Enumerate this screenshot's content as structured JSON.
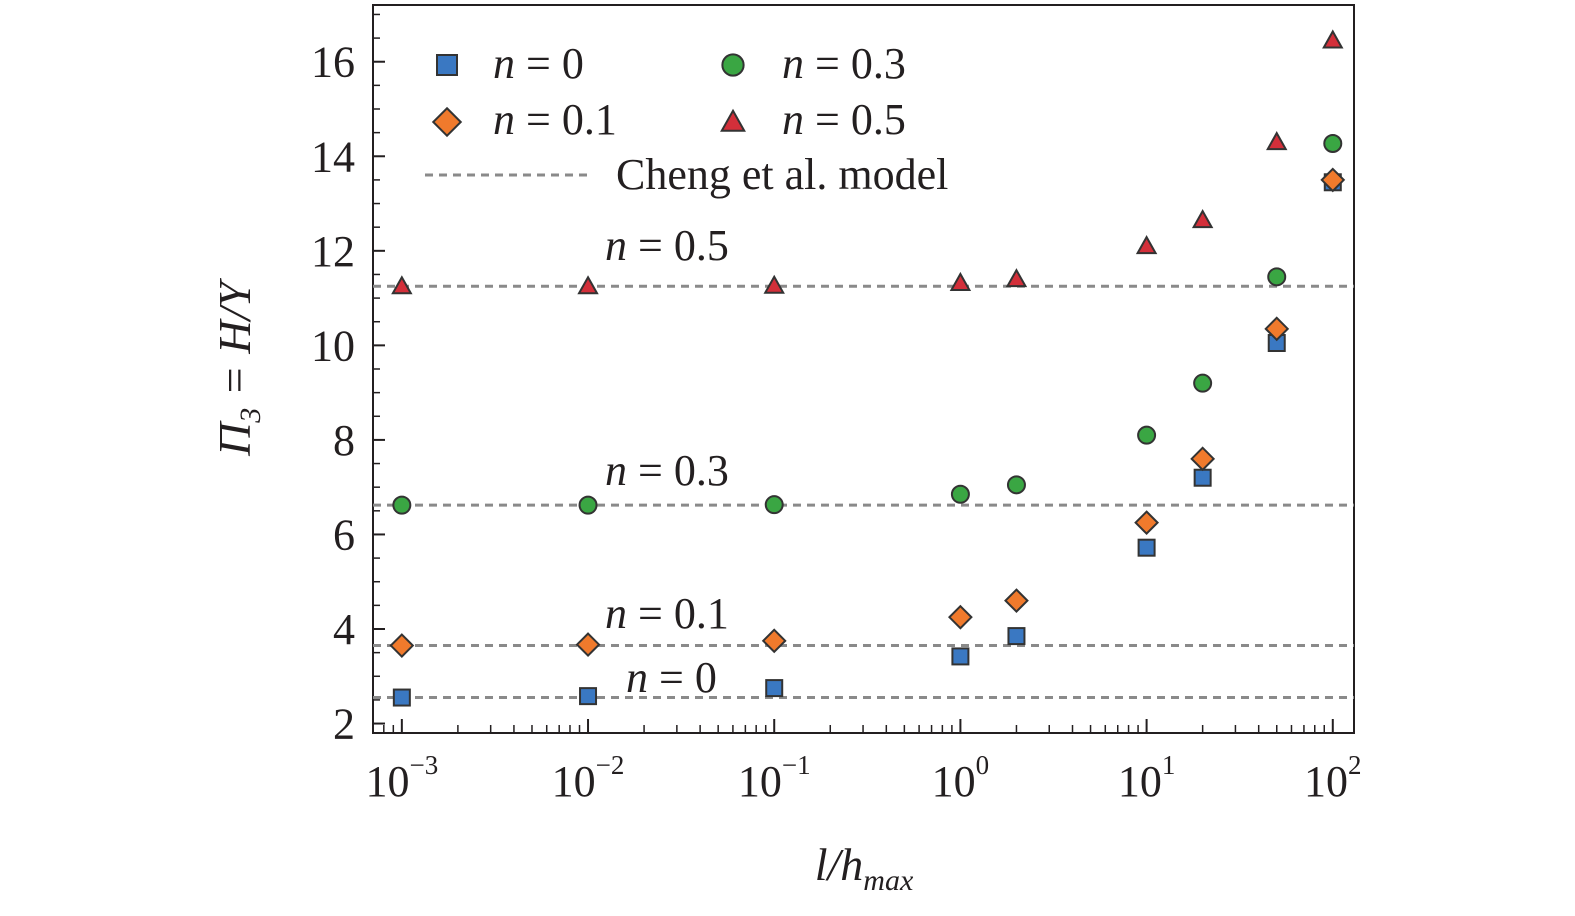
{
  "chart_data": {
    "type": "scatter",
    "xscale": "log",
    "xlim": [
      0.0007,
      130
    ],
    "ylim": [
      1.8,
      17.2
    ],
    "x_ticks": [
      {
        "base": "10",
        "exp": "−3"
      },
      {
        "base": "10",
        "exp": "−2"
      },
      {
        "base": "10",
        "exp": "−1"
      },
      {
        "base": "10",
        "exp": "0"
      },
      {
        "base": "10",
        "exp": "1"
      },
      {
        "base": "10",
        "exp": "2"
      }
    ],
    "y_ticks": [
      "2",
      "4",
      "6",
      "8",
      "10",
      "12",
      "14",
      "16"
    ],
    "xlabel": {
      "main": "l/h",
      "sub": "max"
    },
    "ylabel": {
      "main": "Π",
      "sub": "3",
      "rest": " = H/Y"
    },
    "x": [
      0.001,
      0.01,
      0.1,
      1,
      2,
      10,
      20,
      50,
      100
    ],
    "series": [
      {
        "var": "n",
        "eq": " = 0",
        "marker": "square",
        "color": "#3a78c2",
        "values": [
          2.55,
          2.58,
          2.75,
          3.42,
          3.85,
          5.72,
          7.2,
          10.05,
          13.45
        ]
      },
      {
        "var": "n",
        "eq": " = 0.1",
        "marker": "diamond",
        "color": "#f07a2c",
        "values": [
          3.65,
          3.67,
          3.75,
          4.25,
          4.6,
          6.25,
          7.6,
          10.35,
          13.5
        ]
      },
      {
        "var": "n",
        "eq": " = 0.3",
        "marker": "circle",
        "color": "#3aa643",
        "values": [
          6.62,
          6.62,
          6.63,
          6.85,
          7.05,
          8.1,
          9.2,
          11.45,
          14.27
        ]
      },
      {
        "var": "n",
        "eq": " = 0.5",
        "marker": "triangle",
        "color": "#d32f3a",
        "values": [
          11.25,
          11.25,
          11.26,
          11.32,
          11.4,
          12.1,
          12.65,
          14.3,
          16.45
        ]
      }
    ],
    "model": {
      "label": "Cheng et al. model",
      "lines": [
        {
          "y": 2.55,
          "var": "n",
          "eq": " = 0"
        },
        {
          "y": 3.65,
          "var": "n",
          "eq": " = 0.1"
        },
        {
          "y": 6.62,
          "var": "n",
          "eq": " = 0.3"
        },
        {
          "y": 11.25,
          "var": "n",
          "eq": " = 0.5"
        }
      ]
    },
    "legend_position": "top-left",
    "grid": false
  }
}
